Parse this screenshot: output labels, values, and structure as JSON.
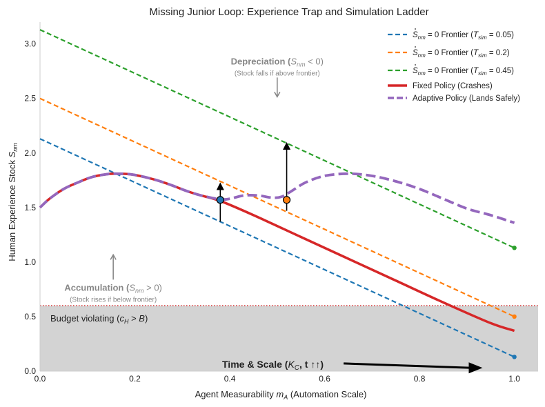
{
  "chart_data": {
    "type": "line",
    "title": "Missing Junior Loop: Experience Trap and Simulation Ladder",
    "xlabel": "Agent Measurability m_A (Automation Scale)",
    "xlabel_parts": [
      "Agent Measurability ",
      "m",
      "A",
      " (Automation Scale)"
    ],
    "ylabel": "Human Experience Stock S_nm",
    "ylabel_parts": [
      "Human Experience Stock ",
      "S",
      "nm"
    ],
    "xlim": [
      0.0,
      1.05
    ],
    "ylim": [
      0.0,
      3.2
    ],
    "x_ticks": [
      0.0,
      0.2,
      0.4,
      0.6,
      0.8,
      1.0
    ],
    "x_tick_labels": [
      "0.0",
      "0.2",
      "0.4",
      "0.6",
      "0.8",
      "1.0"
    ],
    "y_ticks": [
      0.0,
      0.5,
      1.0,
      1.5,
      2.0,
      2.5,
      3.0
    ],
    "y_tick_labels": [
      "0.0",
      "0.5",
      "1.0",
      "1.5",
      "2.0",
      "2.5",
      "3.0"
    ],
    "grid": false,
    "legend_position": "top-right",
    "frontiers": [
      {
        "name": "S_nm = 0 Frontier (T_sim = 0.05)",
        "legend_parts": [
          "= 0 Frontier (",
          "T",
          "sim",
          " = 0.05)"
        ],
        "color": "#1f77b4",
        "style": "dashed",
        "x": [
          0.0,
          1.0
        ],
        "y": [
          2.13,
          0.13
        ],
        "end_marker": [
          1.0,
          0.13
        ]
      },
      {
        "name": "S_nm = 0 Frontier (T_sim = 0.2)",
        "legend_parts": [
          "= 0 Frontier (",
          "T",
          "sim",
          " = 0.2)"
        ],
        "color": "#ff7f0e",
        "style": "dashed",
        "x": [
          0.0,
          1.0
        ],
        "y": [
          2.5,
          0.5
        ],
        "end_marker": [
          1.0,
          0.5
        ]
      },
      {
        "name": "S_nm = 0 Frontier (T_sim = 0.45)",
        "legend_parts": [
          "= 0 Frontier (",
          "T",
          "sim",
          " = 0.45)"
        ],
        "color": "#2ca02c",
        "style": "dashed",
        "x": [
          0.0,
          1.0
        ],
        "y": [
          3.13,
          1.13
        ],
        "end_marker": [
          1.0,
          1.13
        ]
      }
    ],
    "fixed_policy": {
      "name": "Fixed Policy (Crashes)",
      "color": "#d62728",
      "style": "solid",
      "x": [
        0.0,
        0.02,
        0.05,
        0.08,
        0.11,
        0.14,
        0.16,
        0.19,
        0.22,
        0.25,
        0.28,
        0.31,
        0.34,
        0.38,
        0.45,
        0.55,
        0.65,
        0.75,
        0.85,
        0.95,
        1.0
      ],
      "y": [
        1.5,
        1.58,
        1.67,
        1.73,
        1.78,
        1.805,
        1.81,
        1.805,
        1.78,
        1.745,
        1.7,
        1.65,
        1.61,
        1.56,
        1.43,
        1.23,
        1.03,
        0.83,
        0.63,
        0.44,
        0.37
      ]
    },
    "adaptive_policy": {
      "name": "Adaptive Policy (Lands Safely)",
      "color": "#9467bd",
      "style": "dashed",
      "x": [
        0.0,
        0.02,
        0.05,
        0.08,
        0.11,
        0.14,
        0.16,
        0.19,
        0.22,
        0.25,
        0.28,
        0.31,
        0.34,
        0.38,
        0.4,
        0.43,
        0.46,
        0.49,
        0.51,
        0.53,
        0.56,
        0.6,
        0.65,
        0.7,
        0.75,
        0.8,
        0.85,
        0.9,
        0.95,
        1.0
      ],
      "y": [
        1.5,
        1.58,
        1.67,
        1.73,
        1.78,
        1.805,
        1.81,
        1.805,
        1.78,
        1.745,
        1.7,
        1.65,
        1.61,
        1.575,
        1.58,
        1.61,
        1.61,
        1.59,
        1.6,
        1.65,
        1.73,
        1.79,
        1.81,
        1.79,
        1.74,
        1.67,
        1.58,
        1.49,
        1.43,
        1.36
      ]
    },
    "budget_threshold": {
      "y": 0.6,
      "color": "#d62728",
      "label": "Budget violating (c_H > B)",
      "label_parts": [
        "Budget violating (",
        "c",
        "H",
        " > ",
        "B",
        ")"
      ],
      "fill": "#d3d3d3"
    },
    "switch_points": [
      {
        "x": 0.38,
        "y": 1.57,
        "color": "#1f77b4",
        "arrow_from": 1.37,
        "arrow_to": 1.72
      },
      {
        "x": 0.52,
        "y": 1.57,
        "color": "#ff7f0e",
        "arrow_from": 1.47,
        "arrow_to": 2.09
      }
    ],
    "annotations": {
      "depreciation": {
        "main": "Depreciation",
        "main_rest": " < 0)",
        "sub": "(Stock falls if above frontier)",
        "x": 0.5,
        "y": 2.85
      },
      "accumulation": {
        "main": "Accumulation",
        "main_rest": " > 0)",
        "sub": "(Stock rises if below frontier)",
        "x": 0.15,
        "y": 0.82
      },
      "symbol": "S",
      "symbol_sub": "nm",
      "time_scale": {
        "label": "Time & Scale (",
        "kc": "K",
        "kc_sub": "C",
        "rest": ", t ↑↑)",
        "x_start": 0.64,
        "x_end": 0.93,
        "y_start": 0.07,
        "y_end": 0.03
      }
    }
  }
}
